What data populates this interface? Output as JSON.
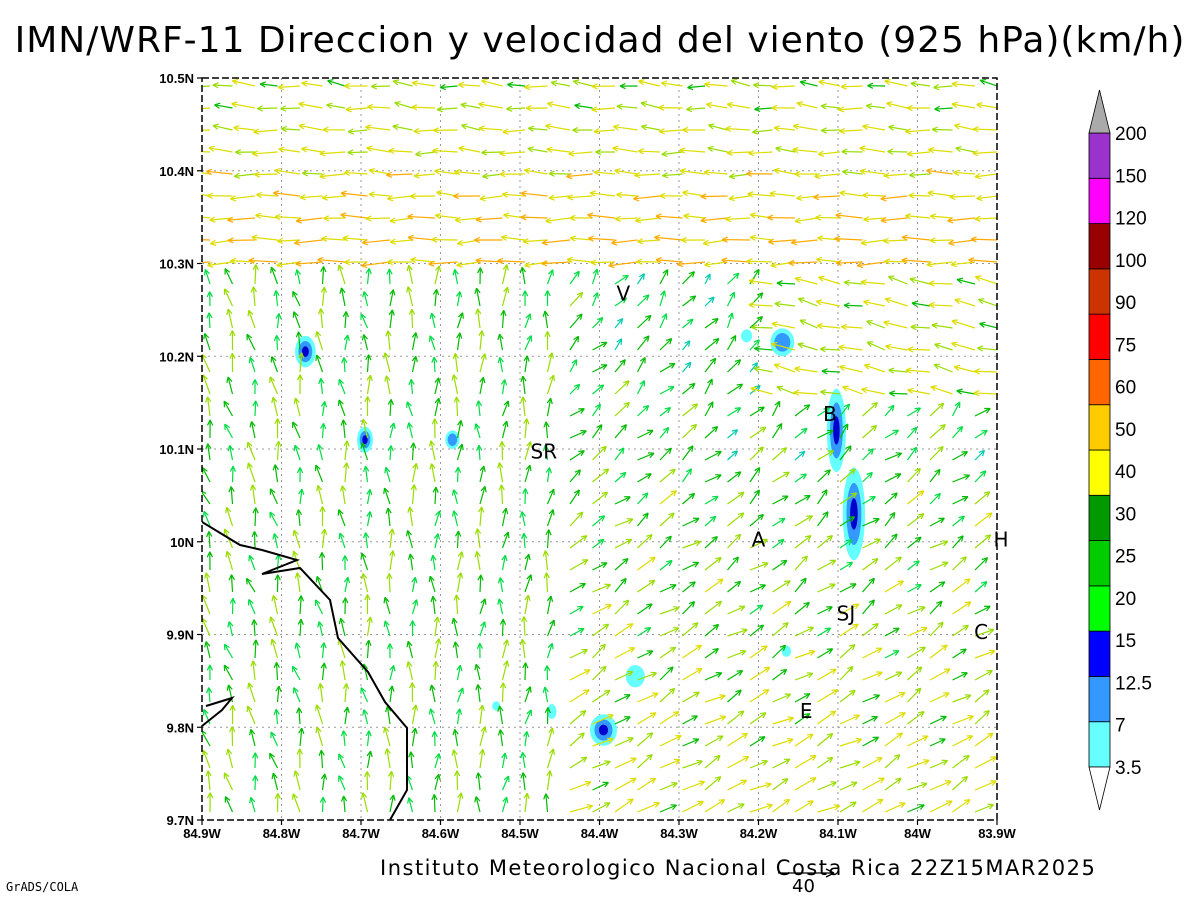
{
  "title": "IMN/WRF-11 Direccion y velocidad del viento (925 hPa)(km/h)",
  "footer": "Instituto Meteorologico Nacional Costa Rica 22Z15MAR2025",
  "credit": "GrADS/COLA",
  "reference_vector": {
    "label": "40",
    "units": "km/h"
  },
  "lat_axis": [
    "10.5N",
    "10.4N",
    "10.3N",
    "10.2N",
    "10.1N",
    "10N",
    "9.9N",
    "9.8N",
    "9.7N"
  ],
  "lon_axis": [
    "84.9W",
    "84.8W",
    "84.7W",
    "84.6W",
    "84.5W",
    "84.4W",
    "84.3W",
    "84.2W",
    "84.1W",
    "84W",
    "83.9W"
  ],
  "colorbar": {
    "labels": [
      "3.5",
      "7",
      "12.5",
      "15",
      "20",
      "25",
      "30",
      "40",
      "50",
      "60",
      "75",
      "90",
      "100",
      "120",
      "150",
      "200"
    ],
    "colors": [
      "#66ffff",
      "#3399ff",
      "#0000ff",
      "#00ff00",
      "#00cc00",
      "#009900",
      "#ffff00",
      "#ffcc00",
      "#ff6600",
      "#ff0000",
      "#cc3300",
      "#990000",
      "#ff00ff",
      "#9933cc",
      "#f5f5f5",
      "#aaaaaa"
    ]
  },
  "cities": [
    {
      "label": "V",
      "lon": -84.37,
      "lat": 10.26
    },
    {
      "label": "SR",
      "lon": -84.47,
      "lat": 10.09
    },
    {
      "label": "B",
      "lon": -84.11,
      "lat": 10.13
    },
    {
      "label": "A",
      "lon": -84.2,
      "lat": 9.995
    },
    {
      "label": "SJ",
      "lon": -84.09,
      "lat": 9.915
    },
    {
      "label": "C",
      "lon": -83.92,
      "lat": 9.895
    },
    {
      "label": "E",
      "lon": -84.14,
      "lat": 9.81
    },
    {
      "label": "H",
      "lon": -83.895,
      "lat": 9.995
    }
  ]
}
